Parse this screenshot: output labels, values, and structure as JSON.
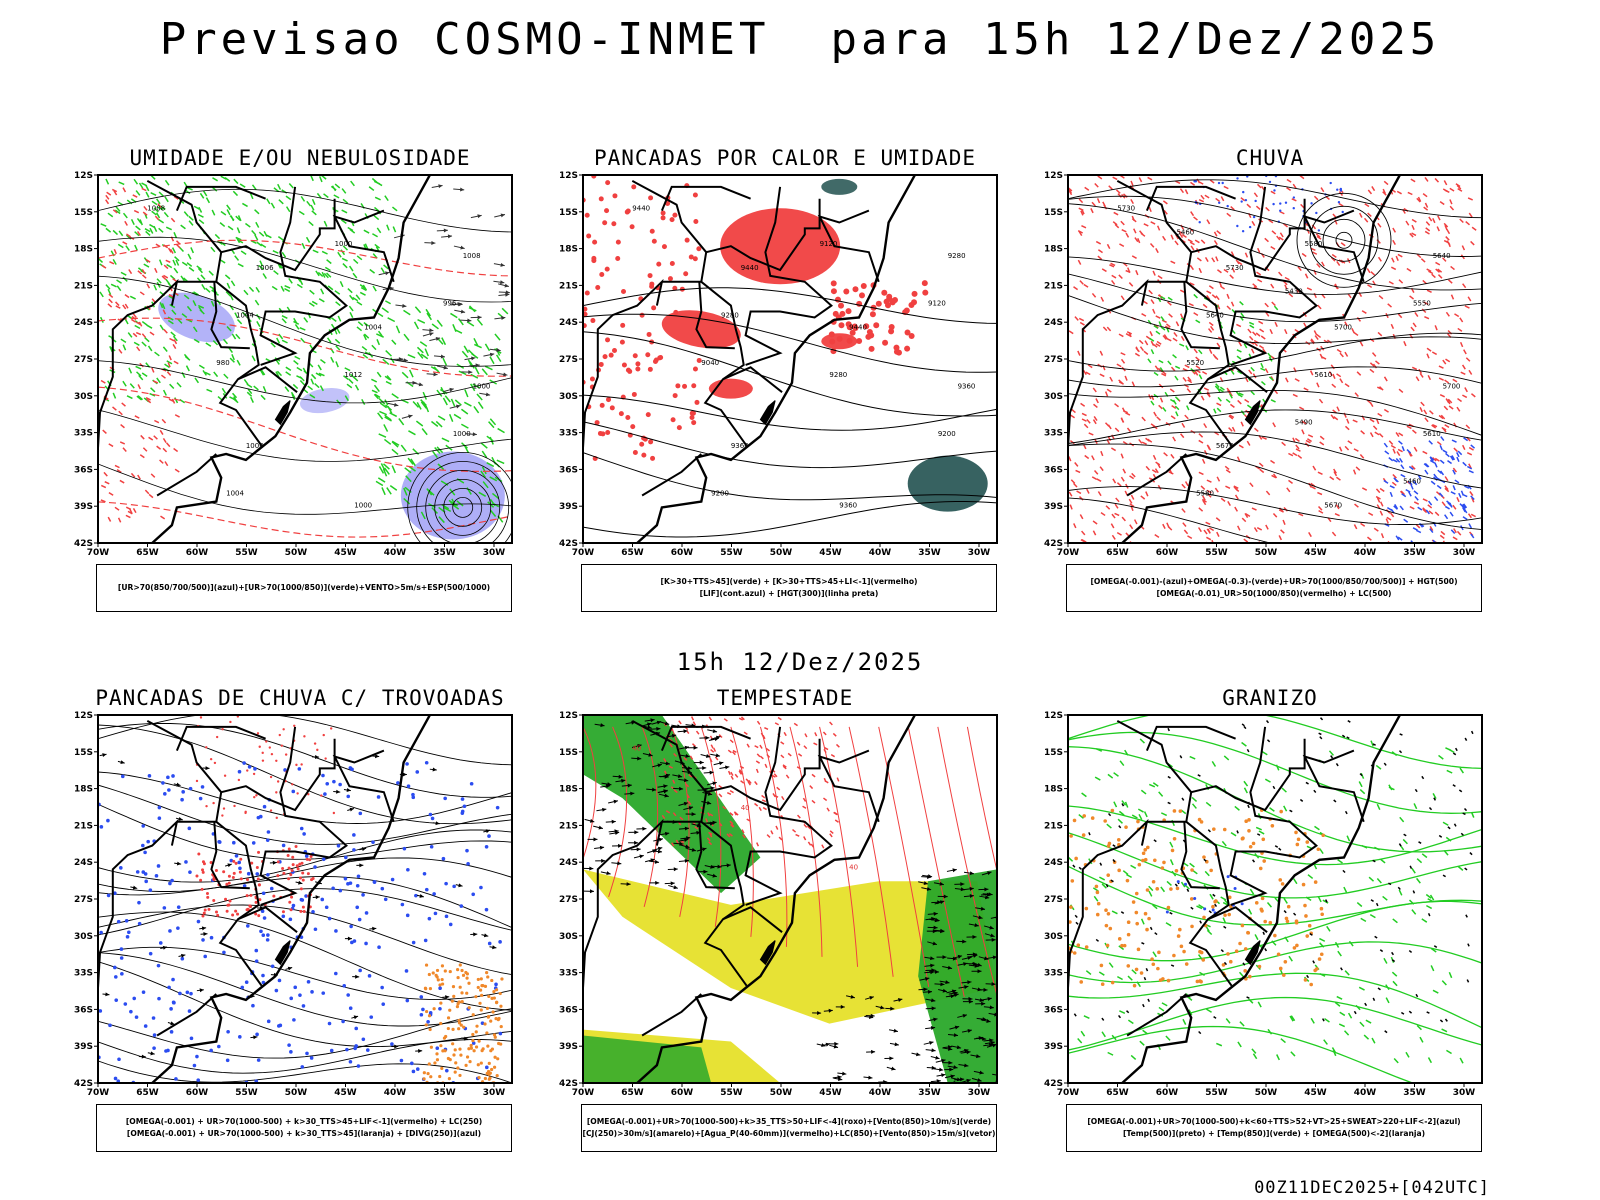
{
  "page": {
    "title": "Previsao COSMO-INMET  para 15h 12/Dez/2025",
    "subtitle": "15h 12/Dez/2025",
    "footer": "00Z11DEC2025+[042UTC]"
  },
  "axes": {
    "lat_labels": [
      "12S",
      "15S",
      "18S",
      "21S",
      "24S",
      "27S",
      "30S",
      "33S",
      "36S",
      "39S",
      "42S"
    ],
    "lon_labels": [
      "70W",
      "65W",
      "60W",
      "55W",
      "50W",
      "45W",
      "40W",
      "35W",
      "30W"
    ],
    "lat_range": [
      -42,
      -11
    ],
    "lon_range": [
      -70,
      -28
    ]
  },
  "colors": {
    "blue_fill": "#9a9af5",
    "green": "#22cc22",
    "red": "#f04040",
    "dark_teal": "#2c5a58",
    "yellow": "#e6e02a",
    "orange": "#f0882a",
    "blue_dots": "#2b4cf0"
  },
  "panels": [
    {
      "id": "umidade",
      "title": "UMIDADE E/OU NEBULOSIDADE",
      "legend": [
        "[UR>70(850/700/500)](azul)+[UR>70(1000/850)](verde)+VENTO>5m/s+ESP(500/1000)"
      ],
      "contour_labels": [
        "1008",
        "1006",
        "1004",
        "1000",
        "1000",
        "1000",
        "1008",
        "1004",
        "1012",
        "1000",
        "1004",
        "1000",
        "996",
        "980"
      ]
    },
    {
      "id": "pancadas_calor",
      "title": "PANCADAS POR CALOR E UMIDADE",
      "legend": [
        "[K>30+TTS>45](verde) + [K>30+TTS>45+LI<-1](vermelho)",
        "[LIF](cont.azul) + [HGT(300)](linha preta)"
      ],
      "contour_labels": [
        "9440",
        "9440",
        "9440",
        "9360",
        "9360",
        "9360",
        "9280",
        "9280",
        "9280",
        "9200",
        "9200",
        "9120",
        "9120",
        "9040"
      ]
    },
    {
      "id": "chuva",
      "title": "CHUVA",
      "legend": [
        "[OMEGA(-0.001)-(azul)+OMEGA(-0.3)-(verde)+UR>70(1000/850/700/500)] + HGT(500)",
        "[OMEGA(-0.01)_UR>50(1000/850)(vermelho) + LC(500)"
      ],
      "contour_labels": [
        "5730",
        "5730",
        "5700",
        "5700",
        "5670",
        "5670",
        "5640",
        "5640",
        "5610",
        "5610",
        "5580",
        "5580",
        "5550",
        "5520",
        "5490",
        "5460",
        "5460",
        "5430"
      ]
    },
    {
      "id": "pancadas_trovoadas",
      "title": "PANCADAS DE CHUVA C/ TROVOADAS",
      "legend": [
        "[OMEGA(-0.001) + UR>70(1000-500) + k>30_TTS>45+LIF<-1](vermelho) + LC(250)",
        "[OMEGA(-0.001) + UR>70(1000-500) + k>30_TTS>45](laranja) + [DIVG(250)](azul)"
      ],
      "contour_labels": []
    },
    {
      "id": "tempestade",
      "title": "TEMPESTADE",
      "legend": [
        "[OMEGA(-0.001)+UR>70(1000-500)+k>35_TTS>50+LIF<-4](roxo)+[Vento(850)>10m/s](verde)",
        "[CJ(250)>30m/s](amarelo)+[Agua_P(40-60mm)](vermelho)+LC(850)+[Vento(850)>15m/s](vetor)"
      ],
      "contour_labels": [
        "40",
        "40",
        "40"
      ]
    },
    {
      "id": "granizo",
      "title": "GRANIZO",
      "legend": [
        "[OMEGA(-0.001)+UR>70(1000-500)+k<60+TTS>52+VT>25+SWEAT>220+LIF<-2](azul)",
        "[Temp(500)](preto) + [Temp(850)](verde) + [OMEGA(500)<-2](laranja)"
      ],
      "contour_labels": []
    }
  ]
}
